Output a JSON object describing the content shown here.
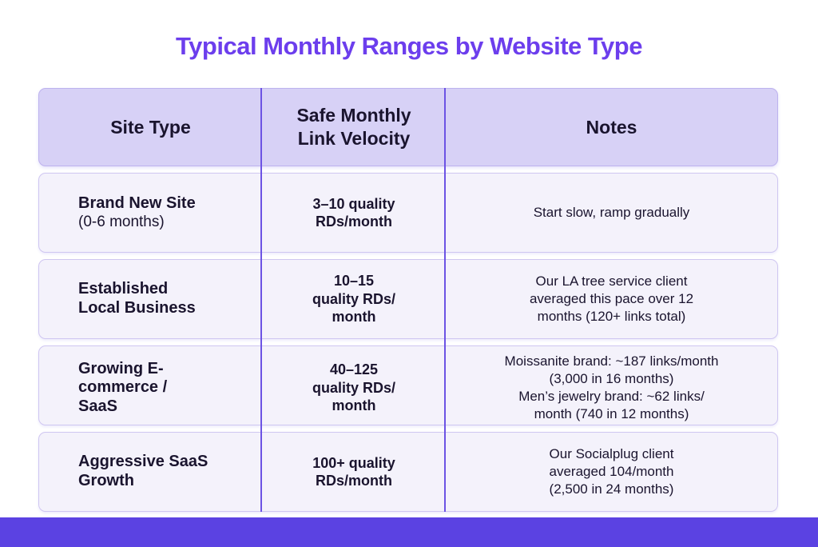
{
  "title": "Typical Monthly Ranges by Website Type",
  "colors": {
    "title_purple": "#6c3eed",
    "header_bg": "#d7d1f6",
    "row_bg": "#f4f2fb",
    "divider": "#6c53e4",
    "bottom_bar": "#5b42e2",
    "text": "#1a142e"
  },
  "table": {
    "headers": {
      "site_type": "Site Type",
      "velocity": "Safe Monthly\nLink Velocity",
      "notes": "Notes"
    },
    "rows": [
      {
        "name": "Brand New Site",
        "sub": "(0-6 months)",
        "velocity": "3–10 quality\nRDs/month",
        "notes": "Start slow, ramp gradually"
      },
      {
        "name": "Established\nLocal Business",
        "sub": "",
        "velocity": "10–15\nquality RDs/\nmonth",
        "notes": "Our LA tree service client\naveraged this pace over 12\nmonths (120+ links total)"
      },
      {
        "name": "Growing E-\ncommerce /\nSaaS",
        "sub": "",
        "velocity": "40–125\nquality RDs/\nmonth",
        "notes": "Moissanite brand: ~187 links/month\n(3,000 in 16 months)\nMen’s jewelry brand: ~62 links/\nmonth (740 in 12 months)"
      },
      {
        "name": "Aggressive SaaS\nGrowth",
        "sub": "",
        "velocity": "100+ quality\nRDs/month",
        "notes": "Our Socialplug client\naveraged 104/month\n(2,500 in 24 months)"
      }
    ]
  },
  "chart_data": {
    "type": "table",
    "title": "Typical Monthly Ranges by Website Type",
    "columns": [
      "Site Type",
      "Safe Monthly Link Velocity",
      "Notes"
    ],
    "rows": [
      [
        "Brand New Site (0-6 months)",
        "3–10 quality RDs/month",
        "Start slow, ramp gradually"
      ],
      [
        "Established Local Business",
        "10–15 quality RDs/month",
        "Our LA tree service client averaged this pace over 12 months (120+ links total)"
      ],
      [
        "Growing E-commerce / SaaS",
        "40–125 quality RDs/month",
        "Moissanite brand: ~187 links/month (3,000 in 16 months); Men’s jewelry brand: ~62 links/month (740 in 12 months)"
      ],
      [
        "Aggressive SaaS Growth",
        "100+ quality RDs/month",
        "Our Socialplug client averaged 104/month (2,500 in 24 months)"
      ]
    ]
  }
}
